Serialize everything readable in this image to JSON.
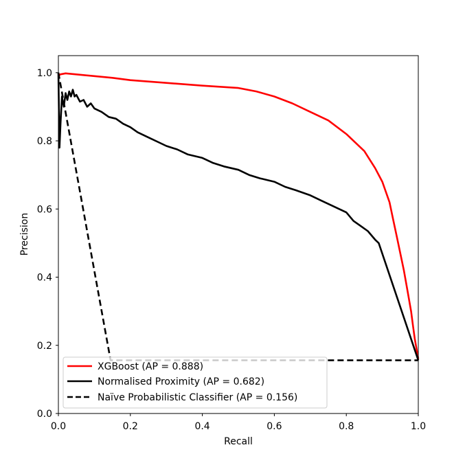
{
  "chart_data": {
    "type": "line",
    "title": "",
    "xlabel": "Recall",
    "ylabel": "Precision",
    "xlim": [
      0,
      1
    ],
    "ylim": [
      0,
      1.05
    ],
    "xticks": [
      "0.0",
      "0.2",
      "0.4",
      "0.6",
      "0.8",
      "1.0"
    ],
    "yticks": [
      "0.0",
      "0.2",
      "0.4",
      "0.6",
      "0.8",
      "1.0"
    ],
    "grid": false,
    "legend_position": "lower-left",
    "series": [
      {
        "name": "XGBoost (AP = 0.888)",
        "color": "#ff0000",
        "style": "solid",
        "x": [
          0.0,
          0.005,
          0.02,
          0.05,
          0.1,
          0.15,
          0.2,
          0.3,
          0.4,
          0.5,
          0.55,
          0.6,
          0.65,
          0.7,
          0.75,
          0.8,
          0.85,
          0.88,
          0.9,
          0.92,
          0.93,
          0.94,
          0.95,
          0.96,
          0.97,
          0.98,
          0.985,
          0.99,
          1.0
        ],
        "y": [
          0.99,
          0.995,
          0.998,
          0.995,
          0.99,
          0.985,
          0.978,
          0.97,
          0.962,
          0.955,
          0.945,
          0.93,
          0.91,
          0.885,
          0.86,
          0.82,
          0.77,
          0.72,
          0.68,
          0.62,
          0.57,
          0.52,
          0.47,
          0.42,
          0.36,
          0.3,
          0.26,
          0.22,
          0.16
        ]
      },
      {
        "name": "Normalised Proximity (AP = 0.682)",
        "color": "#000000",
        "style": "solid",
        "x": [
          0.0,
          0.003,
          0.006,
          0.01,
          0.015,
          0.02,
          0.025,
          0.03,
          0.035,
          0.04,
          0.045,
          0.05,
          0.06,
          0.07,
          0.08,
          0.09,
          0.1,
          0.12,
          0.14,
          0.16,
          0.18,
          0.2,
          0.22,
          0.25,
          0.28,
          0.3,
          0.33,
          0.36,
          0.4,
          0.43,
          0.46,
          0.5,
          0.53,
          0.56,
          0.6,
          0.63,
          0.66,
          0.7,
          0.73,
          0.76,
          0.8,
          0.82,
          0.84,
          0.86,
          0.88,
          0.89,
          1.0
        ],
        "y": [
          1.0,
          0.78,
          0.85,
          0.93,
          0.9,
          0.94,
          0.92,
          0.945,
          0.93,
          0.95,
          0.93,
          0.935,
          0.915,
          0.92,
          0.9,
          0.91,
          0.895,
          0.885,
          0.87,
          0.865,
          0.85,
          0.84,
          0.825,
          0.81,
          0.795,
          0.785,
          0.775,
          0.76,
          0.75,
          0.735,
          0.725,
          0.715,
          0.7,
          0.69,
          0.68,
          0.665,
          0.655,
          0.64,
          0.625,
          0.61,
          0.59,
          0.565,
          0.55,
          0.535,
          0.51,
          0.5,
          0.156
        ]
      },
      {
        "name": "Naïve Probabilistic Classifier (AP = 0.156)",
        "color": "#000000",
        "style": "dashed",
        "x": [
          0.0,
          0.145,
          1.0
        ],
        "y": [
          1.0,
          0.156,
          0.156
        ]
      }
    ]
  }
}
